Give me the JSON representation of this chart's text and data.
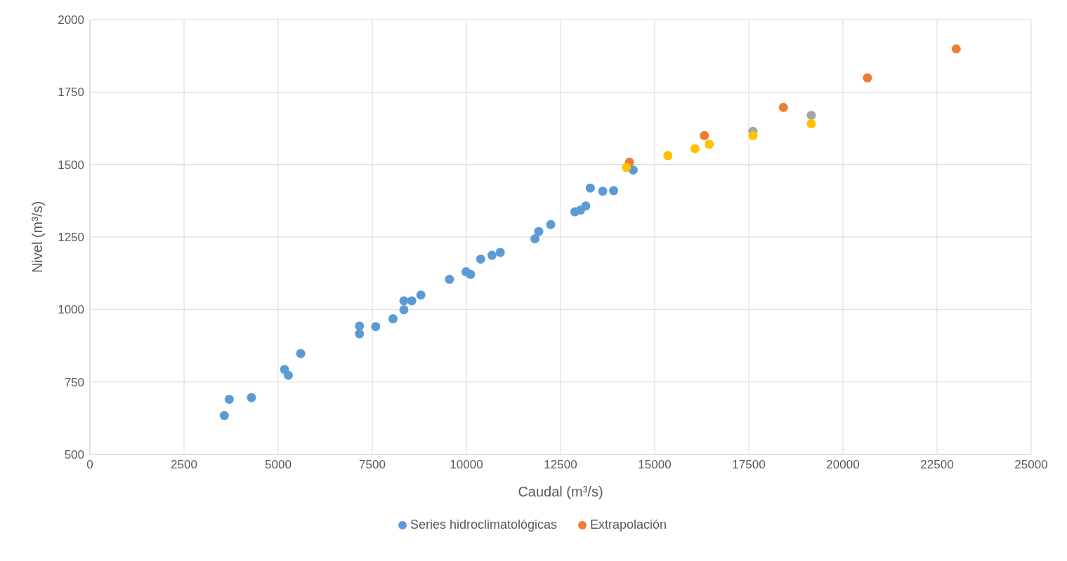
{
  "chart_data": {
    "type": "scatter",
    "xlabel": "Caudal (m³/s)",
    "ylabel": "Nivel (m³/s)",
    "xlim": [
      0,
      25000
    ],
    "xticks": [
      0,
      2500,
      5000,
      7500,
      10000,
      12500,
      15000,
      17500,
      20000,
      22500,
      25000
    ],
    "ylim": [
      500,
      2000
    ],
    "yticks": [
      500,
      750,
      1000,
      1250,
      1500,
      1750,
      2000
    ],
    "grid": true,
    "legend": "bottom",
    "marker": "circle",
    "series": [
      {
        "name": "Series hidroclimatológicas",
        "color": "#5b9bd5",
        "x": [
          3570,
          3700,
          4290,
          5170,
          5270,
          5600,
          7160,
          7160,
          7510,
          7590,
          8010,
          8050,
          8340,
          8340,
          8550,
          8790,
          9550,
          9990,
          10110,
          10380,
          10680,
          10900,
          11820,
          11920,
          12240,
          12880,
          13030,
          13170,
          13290,
          13620,
          13850,
          13910,
          14430
        ],
        "values": [
          634,
          690,
          696,
          793,
          773,
          848,
          943,
          916,
          null,
          941,
          null,
          968,
          999,
          1030,
          1030,
          1050,
          1104,
          1130,
          1121,
          1174,
          1187,
          1197,
          1244,
          1269,
          1293,
          1337,
          1343,
          1357,
          1419,
          1408,
          null,
          1410,
          1481
        ]
      },
      {
        "name": "Extrapolación",
        "color": "#ed7d31",
        "x": [
          14330,
          16320,
          18420,
          20650,
          23010
        ],
        "values": [
          1508,
          1600,
          1697,
          1799,
          1899
        ]
      },
      {
        "color": "#a5a5a5",
        "x": [
          17610,
          19160
        ],
        "values": [
          1615,
          1670
        ]
      },
      {
        "color": "#ffc000",
        "x": [
          14250,
          15350,
          16070,
          16450,
          17610,
          19160
        ],
        "values": [
          1490,
          1531,
          1555,
          1570,
          1600,
          1641
        ]
      }
    ]
  }
}
